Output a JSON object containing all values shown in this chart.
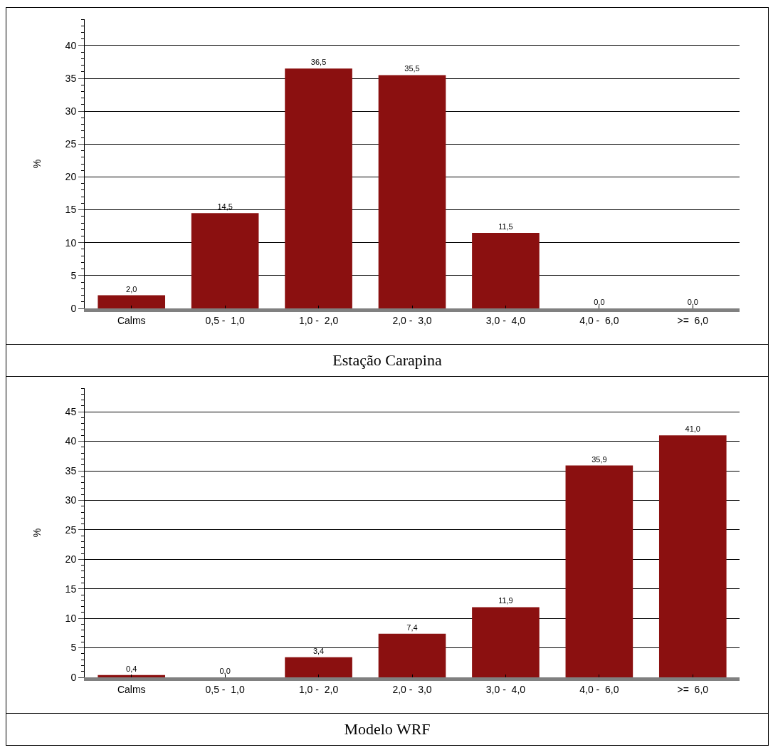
{
  "chart_data": [
    {
      "type": "bar",
      "title": "Estação Carapina",
      "ylabel": "%",
      "categories": [
        "Calms",
        "0,5 -  1,0",
        "1,0 -  2,0",
        "2,0 -  3,0",
        "3,0 -  4,0",
        "4,0 -  6,0",
        ">=  6,0"
      ],
      "values": [
        2.0,
        14.5,
        36.5,
        35.5,
        11.5,
        0.0,
        0.0
      ],
      "value_labels": [
        "2,0",
        "14,5",
        "36,5",
        "35,5",
        "11,5",
        "0,0",
        "0,0"
      ],
      "color": "#8b1010",
      "ylim": [
        0,
        44
      ],
      "yticks": [
        0,
        5,
        10,
        15,
        20,
        25,
        30,
        35,
        40
      ],
      "grid": "y",
      "legend": false
    },
    {
      "type": "bar",
      "title": "Modelo WRF",
      "ylabel": "%",
      "categories": [
        "Calms",
        "0,5 -  1,0",
        "1,0 -  2,0",
        "2,0 -  3,0",
        "3,0 -  4,0",
        "4,0 -  6,0",
        ">=  6,0"
      ],
      "values": [
        0.4,
        0.0,
        3.4,
        7.4,
        11.9,
        35.9,
        41.0
      ],
      "value_labels": [
        "0,4",
        "0,0",
        "3,4",
        "7,4",
        "11,9",
        "35,9",
        "41,0"
      ],
      "color": "#8b1010",
      "ylim": [
        0,
        49
      ],
      "yticks": [
        0,
        5,
        10,
        15,
        20,
        25,
        30,
        35,
        40,
        45
      ],
      "grid": "y",
      "legend": false
    }
  ]
}
